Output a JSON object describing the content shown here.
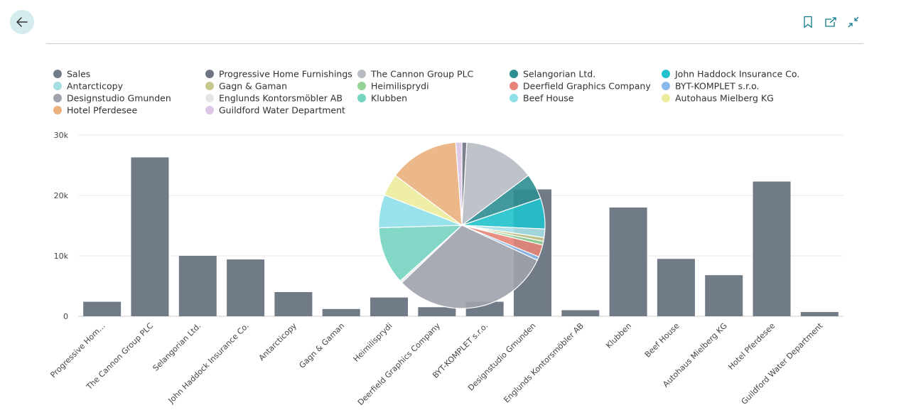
{
  "toolbar": {
    "back": "back-arrow-icon",
    "bookmark": "bookmark-icon",
    "open_new": "open-in-new-window-icon",
    "collapse": "collapse-icon"
  },
  "colors": {
    "accent": "#0f7b8a",
    "bar": "#717b87",
    "back_button_bg": "#d4ecee"
  },
  "chart_data": {
    "type": "bar",
    "overlay_type": "pie",
    "ylim": [
      0,
      30000
    ],
    "yticks": [
      0,
      10000,
      20000,
      30000
    ],
    "ytick_labels": [
      "0",
      "10k",
      "20k",
      "30k"
    ],
    "grid": true,
    "legend_placement": "top",
    "legend": [
      {
        "name": "Sales",
        "color": "#717b87"
      },
      {
        "name": "Progressive Home Furnishings",
        "color": "#6e7481"
      },
      {
        "name": "The Cannon Group PLC",
        "color": "#b7bbc3"
      },
      {
        "name": "Selangorian Ltd.",
        "color": "#2e8e92"
      },
      {
        "name": "John Haddock Insurance Co.",
        "color": "#20c1cc"
      },
      {
        "name": "Antarcticopy",
        "color": "#a5dfe4"
      },
      {
        "name": "Gagn & Gaman",
        "color": "#c8c78b"
      },
      {
        "name": "Heimilisprydi",
        "color": "#94d295"
      },
      {
        "name": "Deerfield Graphics Company",
        "color": "#e58477"
      },
      {
        "name": "BYT-KOMPLET s.r.o.",
        "color": "#8ab8ec"
      },
      {
        "name": "Designstudio Gmunden",
        "color": "#9ea2ab"
      },
      {
        "name": "Englunds Kontorsmöbler AB",
        "color": "#e6e6e6"
      },
      {
        "name": "Klubben",
        "color": "#76d3c0"
      },
      {
        "name": "Beef House",
        "color": "#8fdfe9"
      },
      {
        "name": "Autohaus Mielberg KG",
        "color": "#ecec9c"
      },
      {
        "name": "Hotel Pferdesee",
        "color": "#ebb07c"
      },
      {
        "name": "Guildford Water Department",
        "color": "#dcc5e6"
      }
    ],
    "series": [
      {
        "name": "Sales",
        "categories": [
          "Progressive Hom…",
          "The Cannon Group PLC",
          "Selangorian Ltd.",
          "John Haddock Insurance Co.",
          "Antarcticopy",
          "Gagn & Gaman",
          "Heimilisprydi",
          "Deerfield Graphics Company",
          "BYT-KOMPLET s.r.o.",
          "Designstudio Gmunden",
          "Englunds Kontorsmöbler AB",
          "Klubben",
          "Beef House",
          "Autohaus Mielberg KG",
          "Hotel Pferdesee",
          "Guildford Water Department"
        ],
        "values": [
          2400,
          26300,
          10000,
          9400,
          4000,
          1200,
          3100,
          1500,
          2400,
          21000,
          1000,
          18000,
          9500,
          6800,
          22300,
          700
        ]
      }
    ],
    "pie": {
      "values": [
        400,
        5800,
        2100,
        2500,
        700,
        300,
        300,
        1000,
        300,
        13000,
        200,
        4700,
        2700,
        1800,
        5700,
        500
      ],
      "colors": [
        "#6e7481",
        "#b7bbc3",
        "#2e8e92",
        "#20c1cc",
        "#a5dfe4",
        "#c8c78b",
        "#94d295",
        "#e58477",
        "#8ab8ec",
        "#9ea2ab",
        "#e6e6e6",
        "#76d3c0",
        "#8fdfe9",
        "#ecec9c",
        "#ebb07c",
        "#dcc5e6"
      ]
    }
  }
}
